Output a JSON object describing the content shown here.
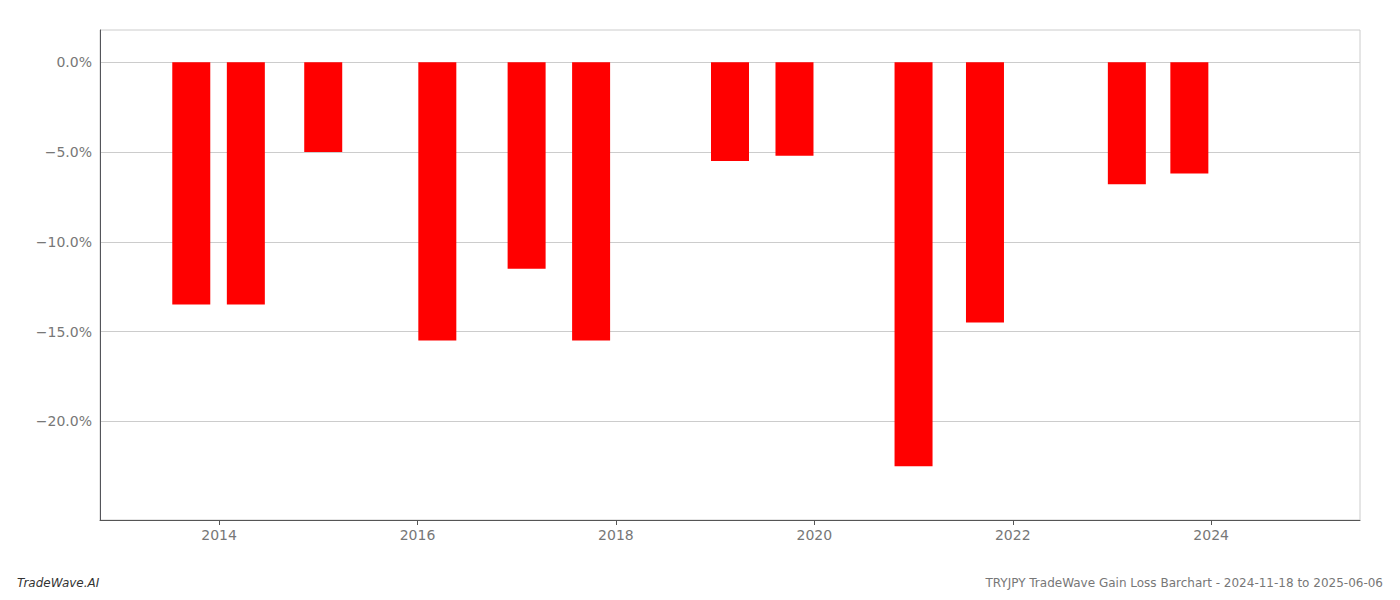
{
  "chart_data": {
    "type": "bar",
    "x": [
      2013.72,
      2014.27,
      2015.05,
      2016.2,
      2017.1,
      2017.75,
      2019.15,
      2019.8,
      2021.0,
      2021.72,
      2023.15,
      2023.78
    ],
    "values": [
      -13.5,
      -13.5,
      -5.0,
      -15.5,
      -11.5,
      -15.5,
      -5.5,
      -5.2,
      -22.5,
      -14.5,
      -6.8,
      -6.2
    ],
    "color": "#ff0000",
    "xlim": [
      2012.8,
      2025.5
    ],
    "xticks": [
      2014,
      2016,
      2018,
      2020,
      2022,
      2024
    ],
    "ylim": [
      -25.5,
      1.8
    ],
    "yticks": [
      {
        "value": 0,
        "label": "0.0%"
      },
      {
        "value": -5,
        "label": "−5.0%"
      },
      {
        "value": -10,
        "label": "−10.0%"
      },
      {
        "value": -15,
        "label": "−15.0%"
      },
      {
        "value": -20,
        "label": "−20.0%"
      }
    ],
    "grid": true,
    "annotations": [
      "TradeWave.AI",
      "TRYJPY TradeWave Gain Loss Barchart - 2024-11-18 to 2025-06-06"
    ]
  }
}
